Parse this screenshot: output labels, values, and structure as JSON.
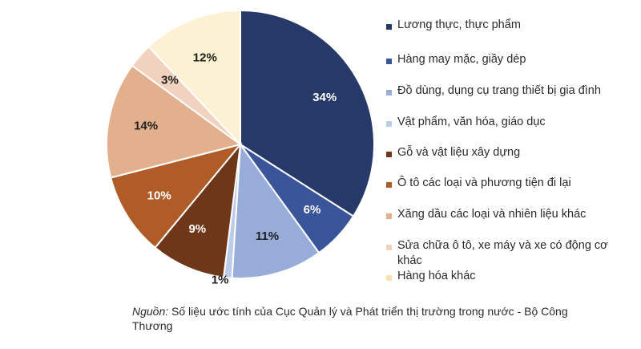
{
  "chart_data": {
    "type": "pie",
    "title": "",
    "start_angle_deg": 0,
    "direction": "clockwise",
    "legend_position": "right",
    "slices": [
      {
        "label": "Lương thực, thực phẩm",
        "value": 34,
        "value_label": "34%",
        "color": "#263968"
      },
      {
        "label": "Hàng may mặc, giầy dép",
        "value": 6,
        "value_label": "6%",
        "color": "#3a5499"
      },
      {
        "label": "Đồ dùng, dụng cụ trang thiết bị gia đình",
        "value": 11,
        "value_label": "11%",
        "color": "#97acd9"
      },
      {
        "label": "Vật phẩm, văn hóa, giáo dục",
        "value": 1,
        "value_label": "1%",
        "color": "#bccbe8"
      },
      {
        "label": "Gỗ và vật liệu xây dựng",
        "value": 9,
        "value_label": "9%",
        "color": "#6f3719"
      },
      {
        "label": "Ô tô các loại và phương tiện đi lại",
        "value": 10,
        "value_label": "10%",
        "color": "#b05c28"
      },
      {
        "label": "Xăng dầu các loại và nhiên liệu khác",
        "value": 14,
        "value_label": "14%",
        "color": "#e2b08d"
      },
      {
        "label": "Sửa chữa ô tô, xe máy và xe có động cơ khác",
        "value": 3,
        "value_label": "3%",
        "color": "#f0d2bf"
      },
      {
        "label": "Hàng hóa khác",
        "value": 12,
        "value_label": "12%",
        "color": "#fdf1d3"
      }
    ]
  },
  "source": {
    "label": "Nguồn:",
    "text": " Số liệu ước tính của Cục Quản lý và Phát triển thị trường trong nước - Bộ Công Thương"
  }
}
